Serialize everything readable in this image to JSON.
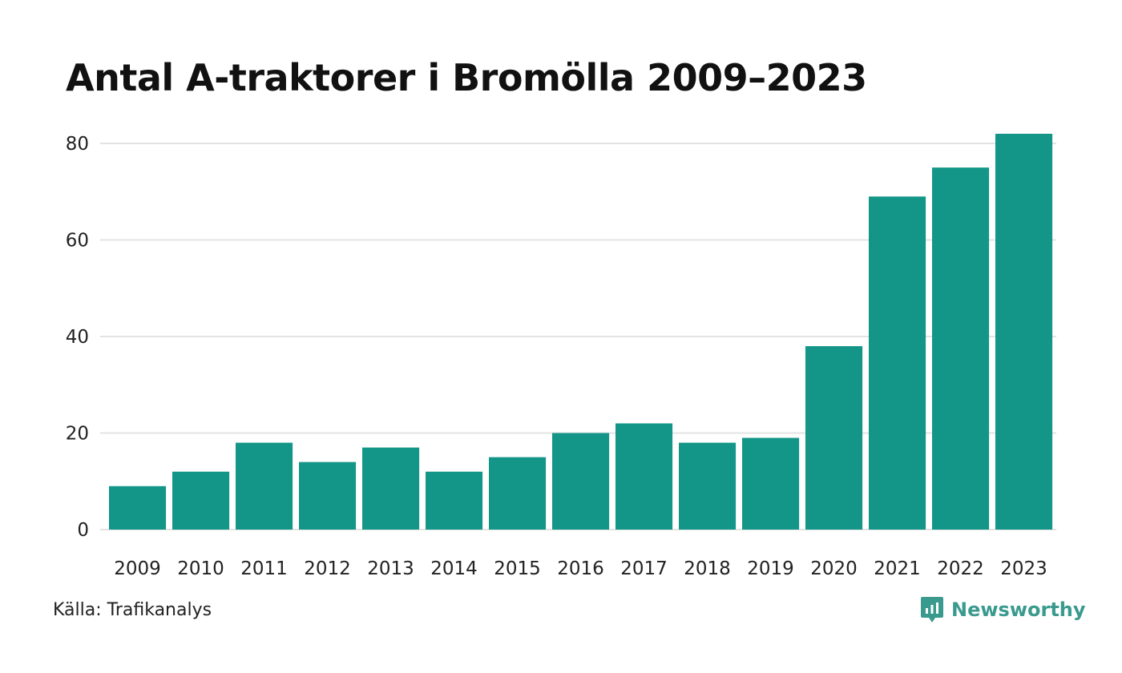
{
  "chart_data": {
    "type": "bar",
    "title": "Antal A-traktorer i Bromölla 2009–2023",
    "categories": [
      "2009",
      "2010",
      "2011",
      "2012",
      "2013",
      "2014",
      "2015",
      "2016",
      "2017",
      "2018",
      "2019",
      "2020",
      "2021",
      "2022",
      "2023"
    ],
    "values": [
      9,
      12,
      18,
      14,
      17,
      12,
      15,
      20,
      22,
      18,
      19,
      38,
      69,
      75,
      82
    ],
    "yticks": [
      0,
      20,
      40,
      60,
      80
    ],
    "ylim": [
      0,
      82
    ],
    "xlabel": "",
    "ylabel": "",
    "grid": true,
    "bar_color": "#139688",
    "grid_color": "#e3e3e3"
  },
  "footer": {
    "source": "Källa: Trafikanalys",
    "brand": "Newsworthy",
    "brand_icon": "newsworthy-logo-icon",
    "brand_color": "#3a9a8e"
  }
}
